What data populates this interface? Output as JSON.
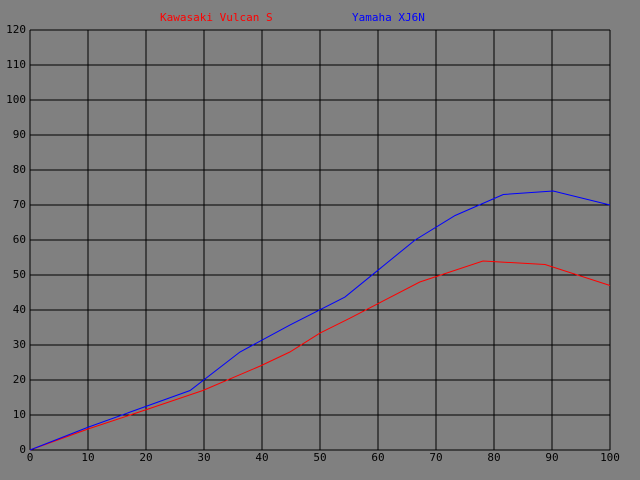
{
  "chart_data": {
    "type": "line",
    "series": [
      {
        "name": "Kawasaki Vulcan S",
        "color": "#ff0000",
        "x": [
          0,
          10,
          20,
          29.8,
          39.7,
          44.8,
          50,
          55.2,
          67.2,
          78.1,
          88.8,
          100
        ],
        "values": [
          0,
          6,
          11.5,
          17,
          24,
          28,
          33.4,
          37.7,
          48,
          54,
          53,
          47
        ]
      },
      {
        "name": "Yamaha XJ6N",
        "color": "#0000ff",
        "x": [
          0,
          10,
          27.6,
          36.2,
          44.8,
          54.3,
          66.4,
          73.3,
          81.6,
          90.2,
          100
        ],
        "values": [
          0,
          6.5,
          17,
          28,
          35.7,
          43.7,
          60,
          67,
          73,
          74,
          70
        ]
      }
    ],
    "xlim": [
      0,
      100
    ],
    "xticks": [
      0,
      10,
      20,
      30,
      40,
      50,
      60,
      70,
      80,
      90,
      100
    ],
    "ylim": [
      0,
      120
    ],
    "yticks": [
      0,
      10,
      20,
      30,
      40,
      50,
      60,
      70,
      80,
      90,
      100,
      110,
      120
    ],
    "grid": true,
    "grid_color": "#000000",
    "background": "#808080"
  }
}
